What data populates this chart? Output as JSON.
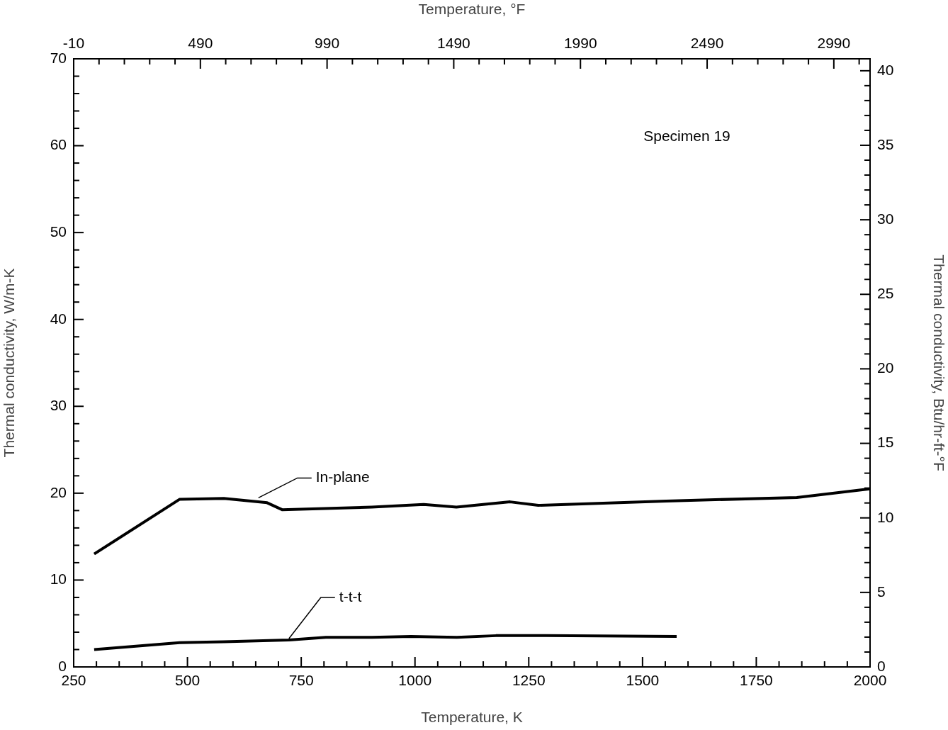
{
  "chart_data": {
    "type": "line",
    "xlabel": "Temperature, K",
    "ylabel": "Thermal conductivity, W/m-K",
    "y2label": "Thermal conductivity, Btu/hr-ft-°F",
    "x2label": "Temperature, °F",
    "annotations": [
      "Specimen 19",
      {
        "text": "In-plane",
        "x": 656,
        "y": 19.3
      },
      {
        "text": "t-t-t",
        "x": 723,
        "y": 3.1
      }
    ],
    "series": [
      {
        "color": "#000000",
        "x": [
          295,
          483,
          580,
          675,
          708,
          905,
          1019,
          1091,
          1209,
          1271,
          1552,
          1839,
          2000
        ],
        "values": [
          13.0,
          19.3,
          19.4,
          18.9,
          18.1,
          18.4,
          18.7,
          18.4,
          19.0,
          18.6,
          19.1,
          19.5,
          20.5
        ]
      },
      {
        "color": "#000000",
        "x": [
          295,
          483,
          580,
          723,
          804,
          905,
          991,
          1092,
          1178,
          1287,
          1575
        ],
        "values": [
          2.0,
          2.8,
          2.9,
          3.1,
          3.4,
          3.4,
          3.5,
          3.4,
          3.6,
          3.6,
          3.5
        ]
      }
    ],
    "xlim": [
      250,
      2000
    ],
    "ylim": [
      0,
      70
    ],
    "x2lim": [
      -10,
      3133
    ],
    "y2lim": [
      0,
      40.8
    ],
    "xticks": [
      250,
      {
        "value": 300,
        "label": null
      },
      {
        "value": 350,
        "label": null
      },
      {
        "value": 400,
        "label": null
      },
      {
        "value": 450,
        "label": null
      },
      500,
      {
        "value": 550,
        "label": null
      },
      {
        "value": 600,
        "label": null
      },
      {
        "value": 650,
        "label": null
      },
      {
        "value": 700,
        "label": null
      },
      750,
      {
        "value": 800,
        "label": null
      },
      {
        "value": 850,
        "label": null
      },
      {
        "value": 900,
        "label": null
      },
      {
        "value": 950,
        "label": null
      },
      1000,
      {
        "value": 1050,
        "label": null
      },
      {
        "value": 1100,
        "label": null
      },
      {
        "value": 1150,
        "label": null
      },
      {
        "value": 1200,
        "label": null
      },
      1250,
      {
        "value": 1300,
        "label": null
      },
      {
        "value": 1350,
        "label": null
      },
      {
        "value": 1400,
        "label": null
      },
      {
        "value": 1450,
        "label": null
      },
      1500,
      {
        "value": 1550,
        "label": null
      },
      {
        "value": 1600,
        "label": null
      },
      {
        "value": 1650,
        "label": null
      },
      {
        "value": 1700,
        "label": null
      },
      1750,
      {
        "value": 1800,
        "label": null
      },
      {
        "value": 1850,
        "label": null
      },
      {
        "value": 1900,
        "label": null
      },
      {
        "value": 1950,
        "label": null
      },
      2000
    ],
    "yticks": [
      0,
      {
        "value": 2,
        "label": null
      },
      {
        "value": 4,
        "label": null
      },
      {
        "value": 6,
        "label": null
      },
      {
        "value": 8,
        "label": null
      },
      10,
      {
        "value": 12,
        "label": null
      },
      {
        "value": 14,
        "label": null
      },
      {
        "value": 16,
        "label": null
      },
      {
        "value": 18,
        "label": null
      },
      20,
      {
        "value": 22,
        "label": null
      },
      {
        "value": 24,
        "label": null
      },
      {
        "value": 26,
        "label": null
      },
      {
        "value": 28,
        "label": null
      },
      30,
      {
        "value": 32,
        "label": null
      },
      {
        "value": 34,
        "label": null
      },
      {
        "value": 36,
        "label": null
      },
      {
        "value": 38,
        "label": null
      },
      40,
      {
        "value": 42,
        "label": null
      },
      {
        "value": 44,
        "label": null
      },
      {
        "value": 46,
        "label": null
      },
      {
        "value": 48,
        "label": null
      },
      50,
      {
        "value": 52,
        "label": null
      },
      {
        "value": 54,
        "label": null
      },
      {
        "value": 56,
        "label": null
      },
      {
        "value": 58,
        "label": null
      },
      60,
      {
        "value": 62,
        "label": null
      },
      {
        "value": 64,
        "label": null
      },
      {
        "value": 66,
        "label": null
      },
      {
        "value": 68,
        "label": null
      },
      70
    ],
    "x2ticks": [
      -10,
      {
        "value": 90,
        "label": null
      },
      {
        "value": 190,
        "label": null
      },
      {
        "value": 290,
        "label": null
      },
      {
        "value": 390,
        "label": null
      },
      490,
      {
        "value": 590,
        "label": null
      },
      {
        "value": 690,
        "label": null
      },
      {
        "value": 790,
        "label": null
      },
      {
        "value": 890,
        "label": null
      },
      990,
      {
        "value": 1090,
        "label": null
      },
      {
        "value": 1190,
        "label": null
      },
      {
        "value": 1290,
        "label": null
      },
      {
        "value": 1390,
        "label": null
      },
      1490,
      {
        "value": 1590,
        "label": null
      },
      {
        "value": 1690,
        "label": null
      },
      {
        "value": 1790,
        "label": null
      },
      {
        "value": 1890,
        "label": null
      },
      1990,
      {
        "value": 2090,
        "label": null
      },
      {
        "value": 2190,
        "label": null
      },
      {
        "value": 2290,
        "label": null
      },
      {
        "value": 2390,
        "label": null
      },
      2490,
      {
        "value": 2590,
        "label": null
      },
      {
        "value": 2690,
        "label": null
      },
      {
        "value": 2790,
        "label": null
      },
      {
        "value": 2890,
        "label": null
      },
      2990,
      {
        "value": 3090,
        "label": null
      }
    ],
    "y2ticks": [
      0,
      {
        "value": 1,
        "label": null
      },
      {
        "value": 2,
        "label": null
      },
      {
        "value": 3,
        "label": null
      },
      {
        "value": 4,
        "label": null
      },
      5,
      {
        "value": 6,
        "label": null
      },
      {
        "value": 7,
        "label": null
      },
      {
        "value": 8,
        "label": null
      },
      {
        "value": 9,
        "label": null
      },
      10,
      {
        "value": 11,
        "label": null
      },
      {
        "value": 12,
        "label": null
      },
      {
        "value": 13,
        "label": null
      },
      {
        "value": 14,
        "label": null
      },
      15,
      {
        "value": 16,
        "label": null
      },
      {
        "value": 17,
        "label": null
      },
      {
        "value": 18,
        "label": null
      },
      {
        "value": 19,
        "label": null
      },
      20,
      {
        "value": 21,
        "label": null
      },
      {
        "value": 22,
        "label": null
      },
      {
        "value": 23,
        "label": null
      },
      {
        "value": 24,
        "label": null
      },
      25,
      {
        "value": 26,
        "label": null
      },
      {
        "value": 27,
        "label": null
      },
      {
        "value": 28,
        "label": null
      },
      {
        "value": 29,
        "label": null
      },
      30,
      {
        "value": 31,
        "label": null
      },
      {
        "value": 32,
        "label": null
      },
      {
        "value": 33,
        "label": null
      },
      {
        "value": 34,
        "label": null
      },
      35,
      {
        "value": 36,
        "label": null
      },
      {
        "value": 37,
        "label": null
      },
      {
        "value": 38,
        "label": null
      },
      {
        "value": 39,
        "label": null
      },
      40
    ],
    "grid": false,
    "legend": false,
    "marker": "none",
    "line_style": "solid"
  }
}
